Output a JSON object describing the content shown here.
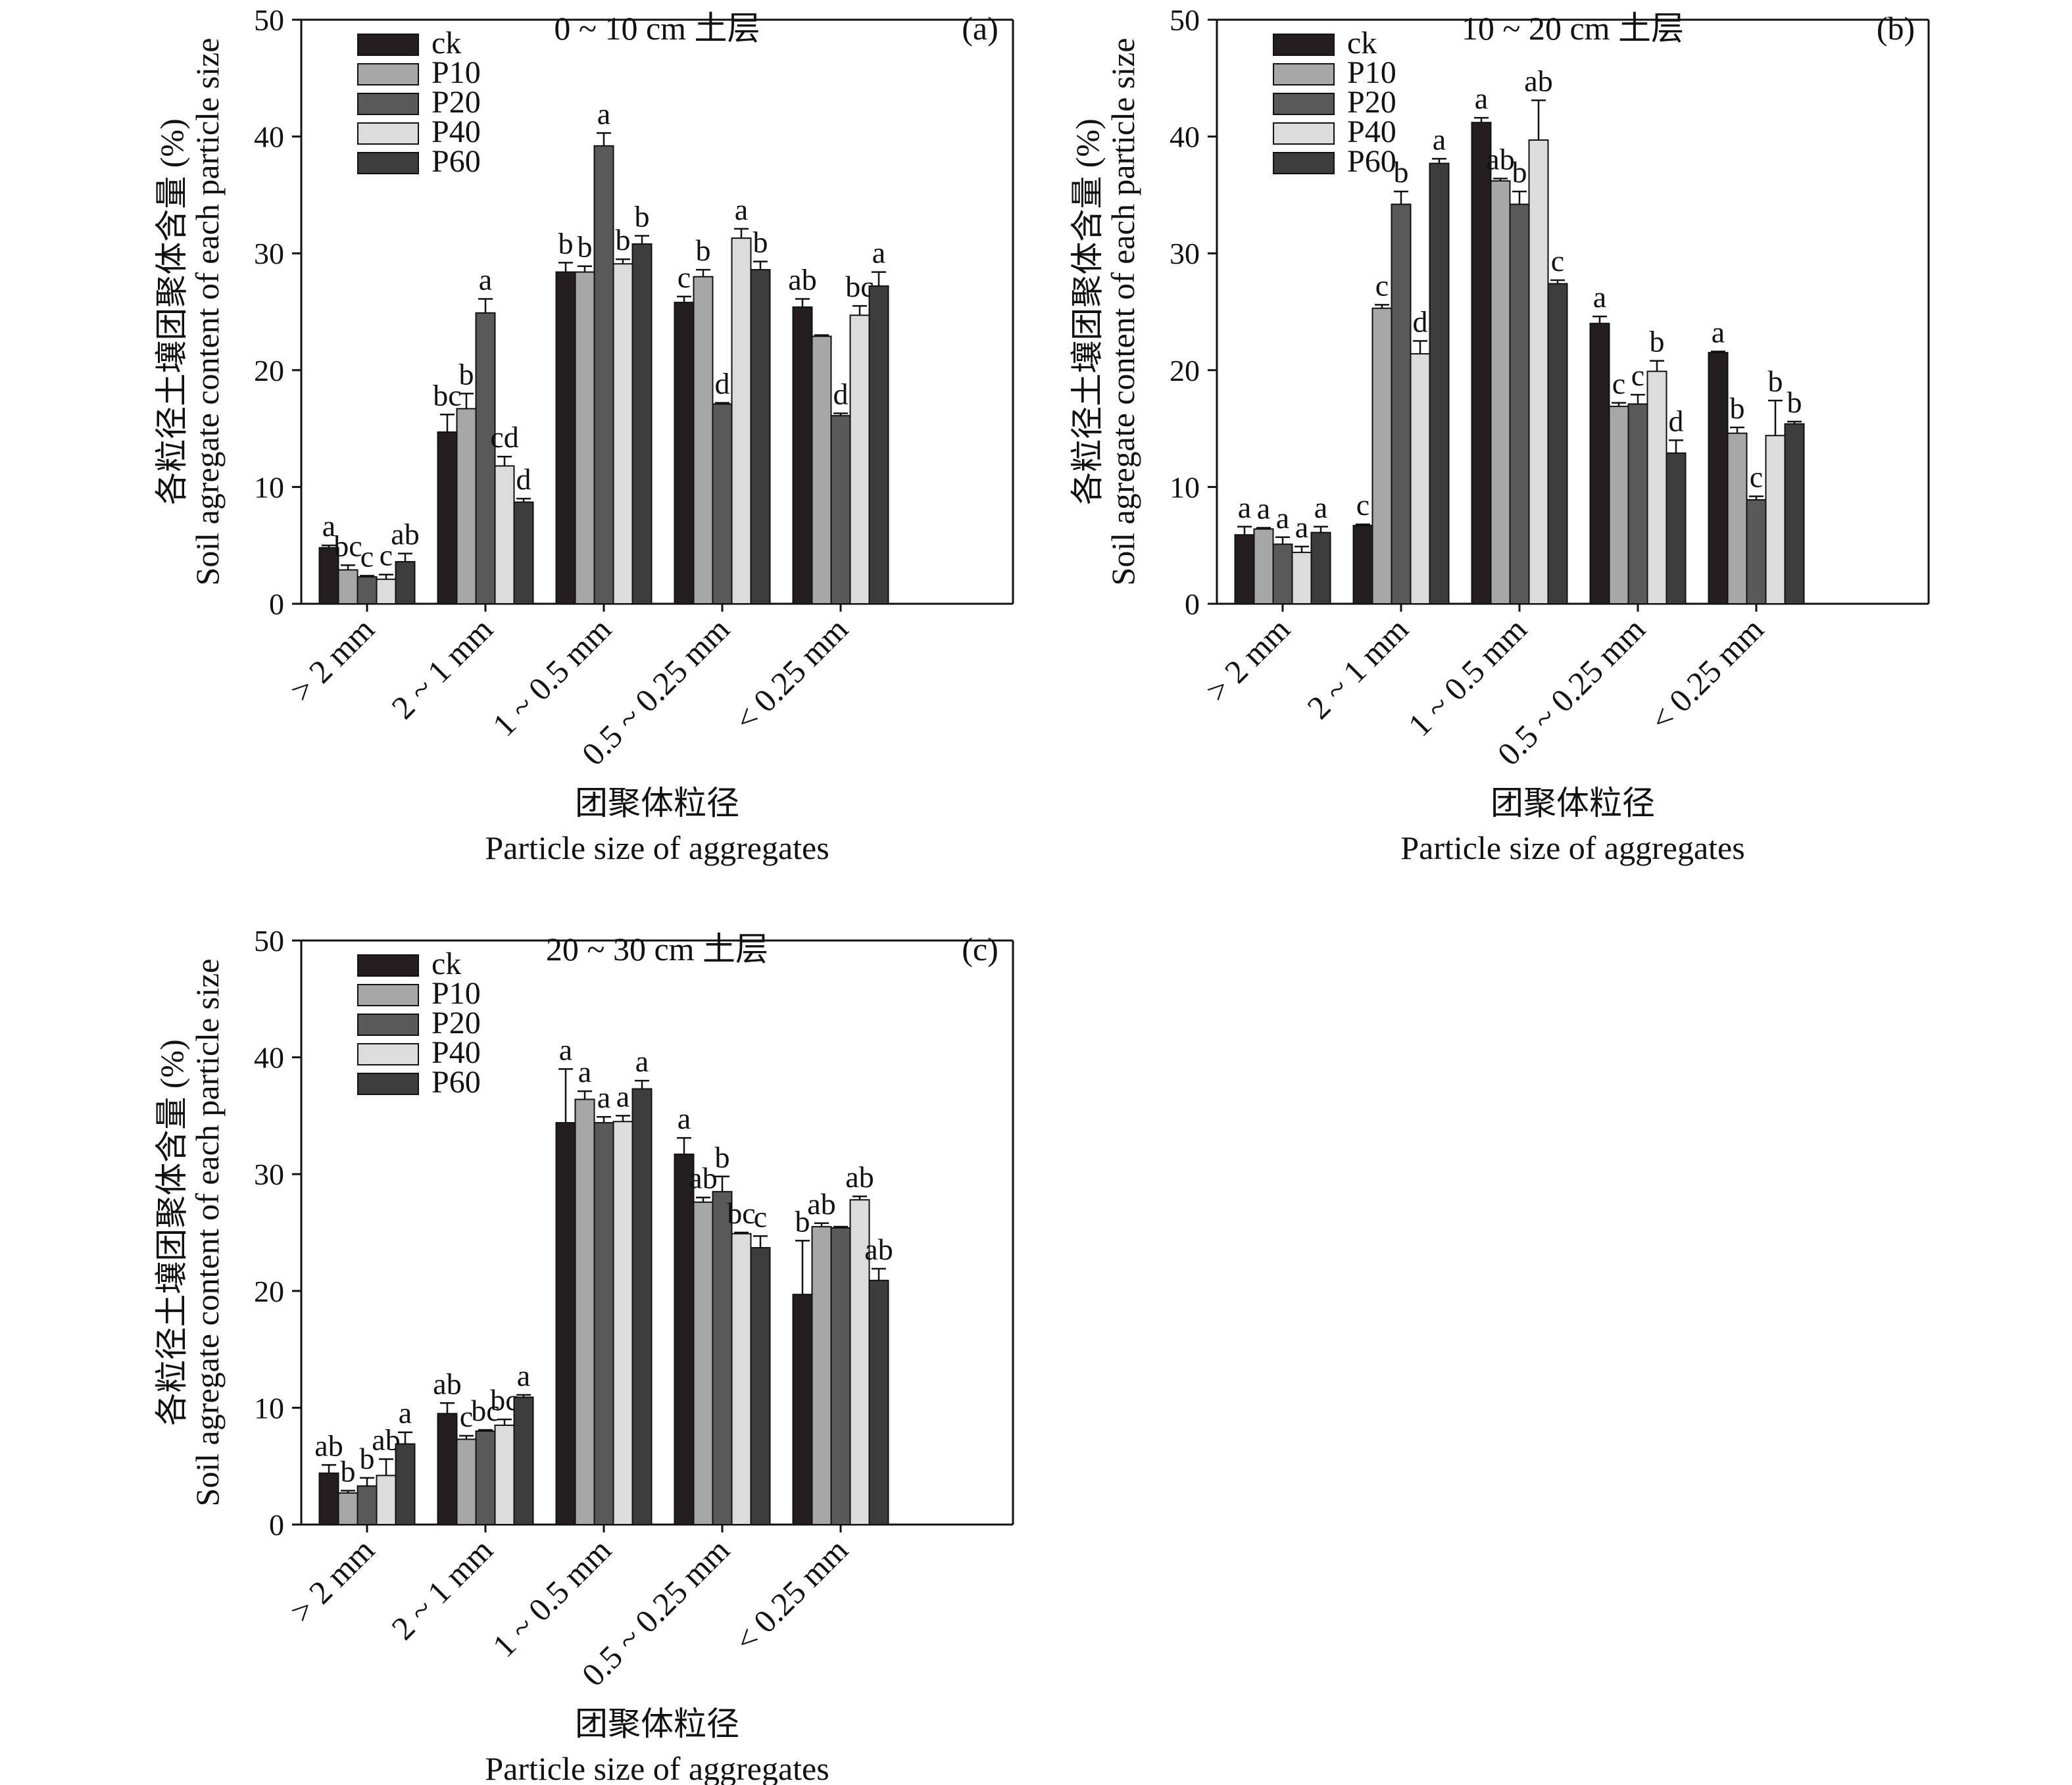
{
  "chart_data": [
    {
      "type": "bar",
      "title": "0 ~ 10 cm 土层",
      "panel_tag": "(a)",
      "ylabel_cn": "各粒径土壤团聚体含量 (%)",
      "ylabel_en": "Soil agregate content of each particle size",
      "xlabel_cn": "团聚体粒径",
      "xlabel_en": "Particle size of aggregates",
      "ylim": [
        0,
        50
      ],
      "yticks": [
        "0",
        "10",
        "20",
        "30",
        "40",
        "50"
      ],
      "categories": [
        "> 2 mm",
        "2 ~ 1 mm",
        "1 ~ 0.5 mm",
        "0.5 ~ 0.25 mm",
        "< 0.25 mm"
      ],
      "legend_position": "top-left",
      "series": [
        {
          "name": "ck",
          "color": "#231f20",
          "values": [
            4.8,
            14.7,
            28.4,
            25.8,
            25.4
          ],
          "errors": [
            0.2,
            1.5,
            0.8,
            0.5,
            0.7
          ],
          "labels": [
            "a",
            "bc",
            "b",
            "c",
            "ab"
          ]
        },
        {
          "name": "P10",
          "color": "#a7a7a7",
          "values": [
            2.9,
            16.7,
            28.4,
            28.0,
            22.9
          ],
          "errors": [
            0.4,
            1.3,
            0.5,
            0.6,
            0.1
          ],
          "labels": [
            "bc",
            "b",
            "b",
            "b",
            ""
          ]
        },
        {
          "name": "P20",
          "color": "#595959",
          "values": [
            2.3,
            24.9,
            39.2,
            17.1,
            16.1
          ],
          "errors": [
            0.1,
            1.2,
            1.1,
            0.1,
            0.2
          ],
          "labels": [
            "c",
            "a",
            "a",
            "d",
            "d"
          ]
        },
        {
          "name": "P40",
          "color": "#dcdcdc",
          "values": [
            2.1,
            11.8,
            29.1,
            31.3,
            24.7
          ],
          "errors": [
            0.4,
            0.8,
            0.4,
            0.8,
            0.8
          ],
          "labels": [
            "c",
            "cd",
            "b",
            "a",
            "bc"
          ]
        },
        {
          "name": "P60",
          "color": "#3d3d3d",
          "values": [
            3.6,
            8.7,
            30.8,
            28.6,
            27.2
          ],
          "errors": [
            0.7,
            0.3,
            0.7,
            0.7,
            1.2
          ],
          "labels": [
            "ab",
            "d",
            "b",
            "b",
            "a"
          ]
        }
      ]
    },
    {
      "type": "bar",
      "title": "10 ~ 20 cm 土层",
      "panel_tag": "(b)",
      "ylabel_cn": "各粒径土壤团聚体含量 (%)",
      "ylabel_en": "Soil agregate content of each particle size",
      "xlabel_cn": "团聚体粒径",
      "xlabel_en": "Particle size of aggregates",
      "ylim": [
        0,
        50
      ],
      "yticks": [
        "0",
        "10",
        "20",
        "30",
        "40",
        "50"
      ],
      "categories": [
        "> 2 mm",
        "2 ~ 1 mm",
        "1 ~ 0.5 mm",
        "0.5 ~ 0.25 mm",
        "< 0.25 mm"
      ],
      "legend_position": "top-left",
      "series": [
        {
          "name": "ck",
          "color": "#231f20",
          "values": [
            5.9,
            6.7,
            41.2,
            24.0,
            21.5
          ],
          "errors": [
            0.7,
            0.1,
            0.4,
            0.6,
            0.1
          ],
          "labels": [
            "a",
            "c",
            "a",
            "a",
            "a"
          ]
        },
        {
          "name": "P10",
          "color": "#a7a7a7",
          "values": [
            6.4,
            25.3,
            36.2,
            16.9,
            14.6
          ],
          "errors": [
            0.1,
            0.3,
            0.2,
            0.3,
            0.5
          ],
          "labels": [
            "a",
            "c",
            "ab",
            "c",
            "b"
          ]
        },
        {
          "name": "P20",
          "color": "#595959",
          "values": [
            5.1,
            34.2,
            34.2,
            17.1,
            8.9
          ],
          "errors": [
            0.6,
            1.1,
            1.1,
            0.8,
            0.3
          ],
          "labels": [
            "a",
            "b",
            "b",
            "c",
            "c"
          ]
        },
        {
          "name": "P40",
          "color": "#dcdcdc",
          "values": [
            4.4,
            21.4,
            39.7,
            19.9,
            14.4
          ],
          "errors": [
            0.5,
            1.1,
            3.4,
            0.9,
            3.0
          ],
          "labels": [
            "a",
            "d",
            "ab",
            "b",
            "b"
          ]
        },
        {
          "name": "P60",
          "color": "#3d3d3d",
          "values": [
            6.1,
            37.7,
            27.4,
            12.9,
            15.4
          ],
          "errors": [
            0.5,
            0.4,
            0.3,
            1.1,
            0.2
          ],
          "labels": [
            "a",
            "a",
            "c",
            "d",
            "b"
          ]
        }
      ]
    },
    {
      "type": "bar",
      "title": "20 ~ 30 cm 土层",
      "panel_tag": "(c)",
      "ylabel_cn": "各粒径土壤团聚体含量 (%)",
      "ylabel_en": "Soil agregate content of each particle size",
      "xlabel_cn": "团聚体粒径",
      "xlabel_en": "Particle size of aggregates",
      "ylim": [
        0,
        50
      ],
      "yticks": [
        "0",
        "10",
        "20",
        "30",
        "40",
        "50"
      ],
      "categories": [
        "> 2 mm",
        "2 ~ 1 mm",
        "1 ~ 0.5 mm",
        "0.5 ~ 0.25 mm",
        "< 0.25 mm"
      ],
      "legend_position": "top-left",
      "series": [
        {
          "name": "ck",
          "color": "#231f20",
          "values": [
            4.4,
            9.5,
            34.4,
            31.7,
            19.7
          ],
          "errors": [
            0.7,
            0.9,
            4.6,
            1.4,
            4.6
          ],
          "labels": [
            "ab",
            "ab",
            "a",
            "a",
            "b"
          ]
        },
        {
          "name": "P10",
          "color": "#a7a7a7",
          "values": [
            2.7,
            7.3,
            36.4,
            27.6,
            25.5
          ],
          "errors": [
            0.2,
            0.3,
            0.7,
            0.4,
            0.3
          ],
          "labels": [
            "b",
            "c",
            "a",
            "ab",
            "ab"
          ]
        },
        {
          "name": "P20",
          "color": "#595959",
          "values": [
            3.3,
            8.0,
            34.4,
            28.5,
            25.4
          ],
          "errors": [
            0.7,
            0.1,
            0.5,
            1.3,
            0.1
          ],
          "labels": [
            "b",
            "bc",
            "a",
            "b",
            ""
          ]
        },
        {
          "name": "P40",
          "color": "#dcdcdc",
          "values": [
            4.2,
            8.5,
            34.5,
            24.9,
            27.8
          ],
          "errors": [
            1.4,
            0.5,
            0.5,
            0.1,
            0.3
          ],
          "labels": [
            "ab",
            "bc",
            "a",
            "bc",
            "ab"
          ]
        },
        {
          "name": "P60",
          "color": "#3d3d3d",
          "values": [
            6.9,
            10.9,
            37.3,
            23.7,
            20.9
          ],
          "errors": [
            1.0,
            0.2,
            0.7,
            1.0,
            1.0
          ],
          "labels": [
            "a",
            "a",
            "a",
            "c",
            "ab"
          ]
        }
      ]
    }
  ]
}
